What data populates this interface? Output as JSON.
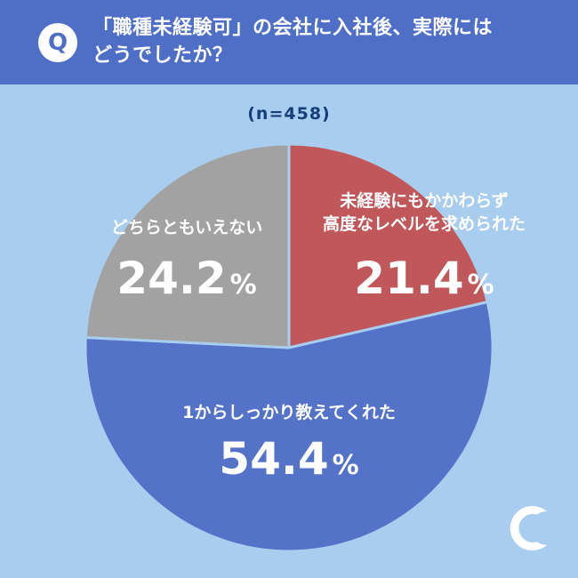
{
  "question": {
    "badge": "Q",
    "line1": "「職種未経験可」の会社に入社後、実際には",
    "line2": "どうでしたか？"
  },
  "sample_size": "(n=458)",
  "colors": {
    "header_bg": "#4f6fc7",
    "page_bg": "#a9cdee",
    "slice_red": "#c0585b",
    "slice_blue": "#5372c8",
    "slice_gray": "#a2a2a2"
  },
  "logo_icon": "crescent-logo-icon",
  "chart_data": {
    "type": "pie",
    "title": "",
    "slices": [
      {
        "label_lines": [
          "未経験にもかかわらず",
          "高度なレベルを求められた"
        ],
        "pct_num": "21.4",
        "pct_sym": "%",
        "value": 21.4,
        "color": "#c0585b"
      },
      {
        "label_lines": [
          "1からしっかり教えてくれた"
        ],
        "pct_num": "54.4",
        "pct_sym": "%",
        "value": 54.4,
        "color": "#5372c8"
      },
      {
        "label_lines": [
          "どちらともいえない"
        ],
        "pct_num": "24.2",
        "pct_sym": "%",
        "value": 24.2,
        "color": "#a2a2a2"
      }
    ]
  }
}
